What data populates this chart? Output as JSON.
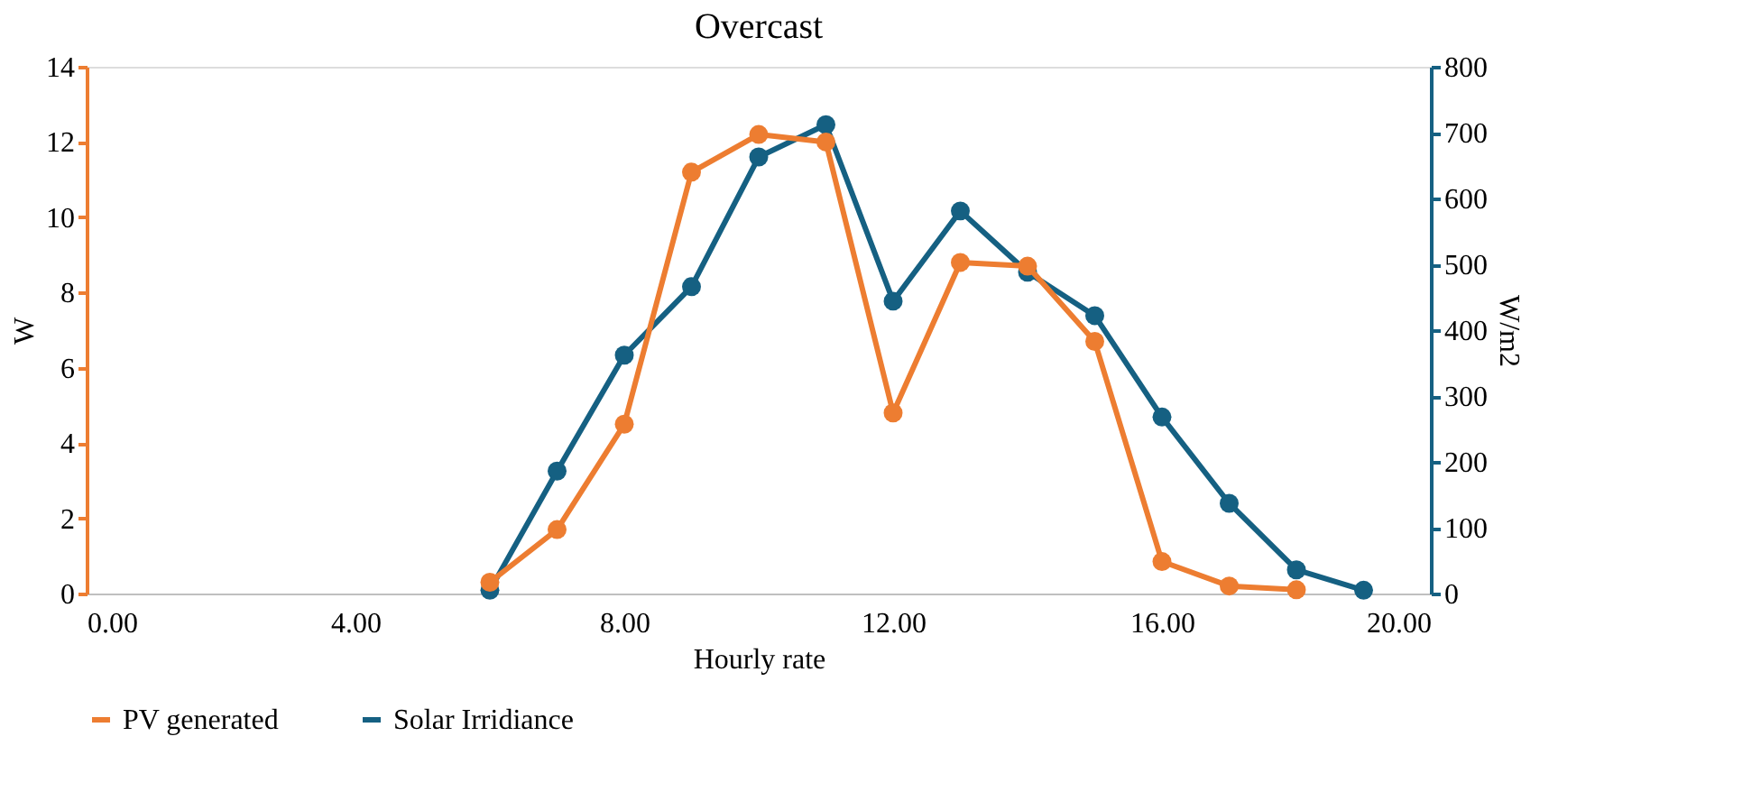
{
  "chart_data": {
    "type": "line",
    "title": "Overcast",
    "xlabel": "Hourly rate",
    "ylabel": "W",
    "y2label": "W/m2",
    "x": [
      6,
      7,
      8,
      9,
      10,
      11,
      12,
      13,
      14,
      15,
      16,
      17,
      18,
      19
    ],
    "series": [
      {
        "name": "PV generated",
        "color": "#ed7d31",
        "values": [
          0.3,
          1.7,
          4.5,
          11.2,
          12.2,
          12.0,
          4.8,
          8.8,
          8.7,
          6.7,
          0.85,
          0.2,
          0.1,
          null
        ]
      },
      {
        "name": "Solar Irridiance",
        "color": "#156082",
        "axis": "y2",
        "values": [
          5,
          186,
          362,
          466,
          663,
          712,
          444,
          581,
          488,
          422,
          268,
          137,
          36,
          5
        ]
      }
    ],
    "xlim": [
      0,
      20
    ],
    "xticks": [
      {
        "value": 0,
        "label": "0.00"
      },
      {
        "value": 4,
        "label": "4.00"
      },
      {
        "value": 8,
        "label": "8.00"
      },
      {
        "value": 12,
        "label": "12.00"
      },
      {
        "value": 16,
        "label": "16.00"
      },
      {
        "value": 20,
        "label": "20.00"
      }
    ],
    "ylim": [
      0,
      14
    ],
    "yticks": [
      0,
      2,
      4,
      6,
      8,
      10,
      12,
      14
    ],
    "y2lim": [
      0,
      800
    ],
    "y2ticks": [
      0,
      100,
      200,
      300,
      400,
      500,
      600,
      700,
      800
    ],
    "grid": false,
    "legend": "bottom",
    "marker": "circle",
    "line_style": "solid"
  }
}
